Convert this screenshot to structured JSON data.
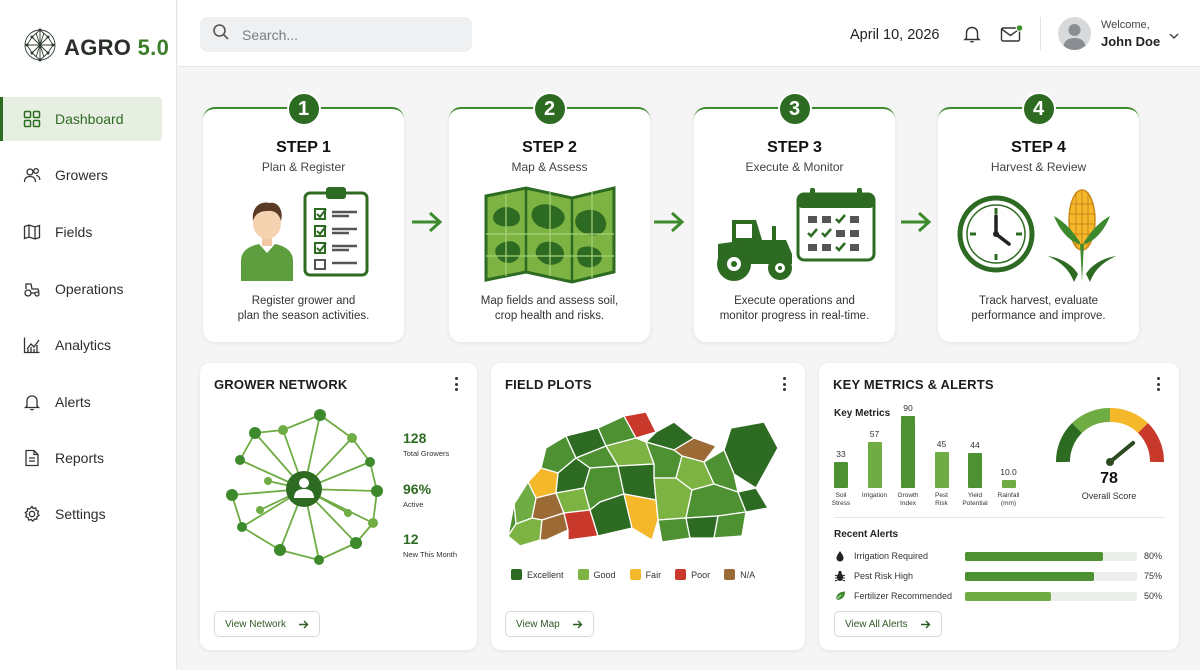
{
  "app": {
    "logo_main": "AGRO",
    "logo_version": "5.0"
  },
  "sidebar": {
    "items": [
      {
        "label": "Dashboard",
        "icon": "dashboard-icon",
        "active": true
      },
      {
        "label": "Growers",
        "icon": "users-icon"
      },
      {
        "label": "Fields",
        "icon": "map-icon"
      },
      {
        "label": "Operations",
        "icon": "tractor-icon"
      },
      {
        "label": "Analytics",
        "icon": "chart-icon"
      },
      {
        "label": "Alerts",
        "icon": "bell-icon"
      },
      {
        "label": "Reports",
        "icon": "document-icon"
      },
      {
        "label": "Settings",
        "icon": "gear-icon"
      }
    ]
  },
  "topbar": {
    "search_placeholder": "Search...",
    "date": "April 10, 2026",
    "welcome": "Welcome,",
    "user_name": "John Doe"
  },
  "steps": [
    {
      "num": "1",
      "title": "STEP 1",
      "subtitle": "Plan & Register",
      "desc_line1": "Register grower and",
      "desc_line2": "plan the season activities."
    },
    {
      "num": "2",
      "title": "STEP 2",
      "subtitle": "Map & Assess",
      "desc_line1": "Map fields and assess soil,",
      "desc_line2": "crop health and risks."
    },
    {
      "num": "3",
      "title": "STEP 3",
      "subtitle": "Execute & Monitor",
      "desc_line1": "Execute operations and",
      "desc_line2": "monitor progress in real-time."
    },
    {
      "num": "4",
      "title": "STEP 4",
      "subtitle": "Harvest & Review",
      "desc_line1": "Track harvest, evaluate",
      "desc_line2": "performance and improve."
    }
  ],
  "grower_network": {
    "title": "GROWER NETWORK",
    "stats": [
      {
        "value": "128",
        "label": "Total Growers"
      },
      {
        "value": "96%",
        "label": "Active"
      },
      {
        "value": "12",
        "label": "New This Month"
      }
    ],
    "button": "View Network"
  },
  "field_plots": {
    "title": "FIELD PLOTS",
    "legend": [
      {
        "label": "Excellent",
        "color": "#2e6b22"
      },
      {
        "label": "Good",
        "color": "#7cb342"
      },
      {
        "label": "Fair",
        "color": "#f4b82a"
      },
      {
        "label": "Poor",
        "color": "#c8392b"
      },
      {
        "label": "N/A",
        "color": "#9c6b35"
      }
    ],
    "button": "View Map"
  },
  "key_metrics": {
    "title": "KEY METRICS & ALERTS",
    "subtitle": "Key Metrics",
    "metrics": [
      {
        "value": "33",
        "label_line1": "Soil",
        "label_line2": "Stress"
      },
      {
        "value": "57",
        "label_line1": "Irrigation",
        "label_line2": ""
      },
      {
        "value": "90",
        "label_line1": "Growth",
        "label_line2": "Index"
      },
      {
        "value": "45",
        "label_line1": "Pest",
        "label_line2": "Risk"
      },
      {
        "value": "44",
        "label_line1": "Yield",
        "label_line2": "Potential"
      },
      {
        "value": "10.0",
        "label_line1": "Rainfall",
        "label_line2": "(mm)"
      }
    ],
    "score": "78",
    "score_label": "Overall Score",
    "score_fraction": 0.78,
    "alerts_title": "Recent Alerts",
    "alerts": [
      {
        "label": "Irrigation Required",
        "pct": "80%",
        "value": 0.8,
        "icon": "water-drop-icon",
        "color": "#4e9132"
      },
      {
        "label": "Pest Risk High",
        "pct": "75%",
        "value": 0.75,
        "icon": "bug-icon",
        "color": "#4e9132"
      },
      {
        "label": "Fertilizer Recommended",
        "pct": "50%",
        "value": 0.5,
        "icon": "leaf-icon",
        "color": "#6fac44"
      }
    ],
    "button": "View All Alerts"
  }
}
